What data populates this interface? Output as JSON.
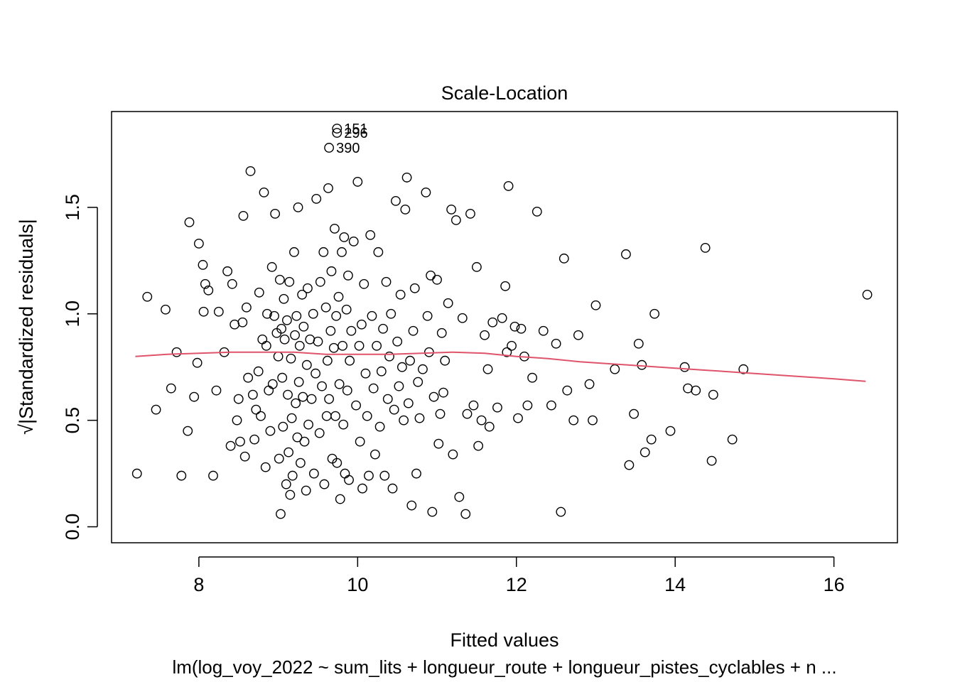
{
  "chart_data": {
    "type": "scatter",
    "title": "Scale-Location",
    "xlabel": "Fitted values",
    "ylabel": "√|Standardized residuals|",
    "subtitle": "lm(log_voy_2022 ~ sum_lits + longueur_route + longueur_pistes_cyclables + n ...",
    "xlim": [
      6.9,
      16.8
    ],
    "ylim": [
      -0.075,
      1.95
    ],
    "x_ticks": [
      8,
      10,
      12,
      14,
      16
    ],
    "y_ticks": [
      0.0,
      0.5,
      1.0,
      1.5
    ],
    "x_tick_labels": [
      "8",
      "10",
      "12",
      "14",
      "16"
    ],
    "y_tick_labels": [
      "0.0",
      "0.5",
      "1.0",
      "1.5"
    ],
    "grid": false,
    "smoother_color": "#DF536B",
    "point_color": "#000000",
    "labeled_points": [
      {
        "label": "151",
        "x": 9.74,
        "y": 1.87
      },
      {
        "label": "296",
        "x": 9.74,
        "y": 1.85
      },
      {
        "label": "390",
        "x": 9.64,
        "y": 1.78
      }
    ],
    "smoother": [
      [
        7.2,
        0.8
      ],
      [
        7.6,
        0.81
      ],
      [
        8.0,
        0.815
      ],
      [
        8.4,
        0.82
      ],
      [
        8.8,
        0.82
      ],
      [
        9.2,
        0.82
      ],
      [
        9.6,
        0.81
      ],
      [
        10.0,
        0.81
      ],
      [
        10.4,
        0.81
      ],
      [
        10.8,
        0.815
      ],
      [
        11.2,
        0.82
      ],
      [
        11.6,
        0.815
      ],
      [
        12.0,
        0.8
      ],
      [
        12.4,
        0.79
      ],
      [
        12.8,
        0.775
      ],
      [
        13.2,
        0.765
      ],
      [
        13.6,
        0.755
      ],
      [
        14.0,
        0.745
      ],
      [
        14.4,
        0.735
      ],
      [
        14.8,
        0.725
      ],
      [
        15.2,
        0.715
      ],
      [
        15.6,
        0.705
      ],
      [
        16.0,
        0.695
      ],
      [
        16.4,
        0.683
      ]
    ],
    "points": [
      [
        7.22,
        0.25
      ],
      [
        7.35,
        1.08
      ],
      [
        7.46,
        0.55
      ],
      [
        7.58,
        1.02
      ],
      [
        7.65,
        0.65
      ],
      [
        7.72,
        0.82
      ],
      [
        7.78,
        0.24
      ],
      [
        7.86,
        0.45
      ],
      [
        7.88,
        1.43
      ],
      [
        7.94,
        0.61
      ],
      [
        7.98,
        0.77
      ],
      [
        8.0,
        1.33
      ],
      [
        8.05,
        1.23
      ],
      [
        8.06,
        1.01
      ],
      [
        8.08,
        1.14
      ],
      [
        8.12,
        1.11
      ],
      [
        8.18,
        0.24
      ],
      [
        8.22,
        0.64
      ],
      [
        8.25,
        1.01
      ],
      [
        8.32,
        0.82
      ],
      [
        8.36,
        1.2
      ],
      [
        8.4,
        0.38
      ],
      [
        8.42,
        1.14
      ],
      [
        8.45,
        0.95
      ],
      [
        8.48,
        0.5
      ],
      [
        8.5,
        0.6
      ],
      [
        8.52,
        0.4
      ],
      [
        8.55,
        0.96
      ],
      [
        8.56,
        1.46
      ],
      [
        8.58,
        0.33
      ],
      [
        8.6,
        1.03
      ],
      [
        8.62,
        0.7
      ],
      [
        8.65,
        1.67
      ],
      [
        8.68,
        0.62
      ],
      [
        8.7,
        0.41
      ],
      [
        8.72,
        0.55
      ],
      [
        8.75,
        0.73
      ],
      [
        8.76,
        1.1
      ],
      [
        8.78,
        0.52
      ],
      [
        8.8,
        0.88
      ],
      [
        8.82,
        1.57
      ],
      [
        8.84,
        0.28
      ],
      [
        8.85,
        0.85
      ],
      [
        8.86,
        1.0
      ],
      [
        8.88,
        0.64
      ],
      [
        8.9,
        0.45
      ],
      [
        8.92,
        1.22
      ],
      [
        8.93,
        0.67
      ],
      [
        8.95,
        0.99
      ],
      [
        8.96,
        1.47
      ],
      [
        8.98,
        0.91
      ],
      [
        9.0,
        0.8
      ],
      [
        9.01,
        0.32
      ],
      [
        9.02,
        1.16
      ],
      [
        9.03,
        0.06
      ],
      [
        9.04,
        0.93
      ],
      [
        9.05,
        0.7
      ],
      [
        9.06,
        0.47
      ],
      [
        9.07,
        1.07
      ],
      [
        9.08,
        0.88
      ],
      [
        9.1,
        0.2
      ],
      [
        9.11,
        0.97
      ],
      [
        9.12,
        0.62
      ],
      [
        9.13,
        0.35
      ],
      [
        9.14,
        1.15
      ],
      [
        9.15,
        0.15
      ],
      [
        9.16,
        0.79
      ],
      [
        9.17,
        0.51
      ],
      [
        9.18,
        0.24
      ],
      [
        9.2,
        1.29
      ],
      [
        9.21,
        0.9
      ],
      [
        9.22,
        0.58
      ],
      [
        9.23,
        0.99
      ],
      [
        9.24,
        0.42
      ],
      [
        9.25,
        1.5
      ],
      [
        9.26,
        0.68
      ],
      [
        9.27,
        0.85
      ],
      [
        9.28,
        0.3
      ],
      [
        9.3,
        1.09
      ],
      [
        9.31,
        0.61
      ],
      [
        9.32,
        0.94
      ],
      [
        9.33,
        0.4
      ],
      [
        9.35,
        0.17
      ],
      [
        9.36,
        0.76
      ],
      [
        9.37,
        1.12
      ],
      [
        9.38,
        0.48
      ],
      [
        9.4,
        0.88
      ],
      [
        9.42,
        0.6
      ],
      [
        9.44,
        1.0
      ],
      [
        9.45,
        0.25
      ],
      [
        9.47,
        0.72
      ],
      [
        9.48,
        1.54
      ],
      [
        9.5,
        0.87
      ],
      [
        9.52,
        0.44
      ],
      [
        9.53,
        1.15
      ],
      [
        9.55,
        0.66
      ],
      [
        9.57,
        1.29
      ],
      [
        9.58,
        0.2
      ],
      [
        9.6,
        1.03
      ],
      [
        9.61,
        0.52
      ],
      [
        9.62,
        0.78
      ],
      [
        9.63,
        1.59
      ],
      [
        9.64,
        0.6
      ],
      [
        9.66,
        0.92
      ],
      [
        9.67,
        1.2
      ],
      [
        9.68,
        0.32
      ],
      [
        9.7,
        0.84
      ],
      [
        9.71,
        1.4
      ],
      [
        9.72,
        0.52
      ],
      [
        9.73,
        0.99
      ],
      [
        9.74,
        0.3
      ],
      [
        9.76,
        1.08
      ],
      [
        9.77,
        0.67
      ],
      [
        9.78,
        0.13
      ],
      [
        9.8,
        1.29
      ],
      [
        9.81,
        0.85
      ],
      [
        9.82,
        0.48
      ],
      [
        9.83,
        1.36
      ],
      [
        9.84,
        0.25
      ],
      [
        9.86,
        1.02
      ],
      [
        9.87,
        0.64
      ],
      [
        9.88,
        1.18
      ],
      [
        9.89,
        0.22
      ],
      [
        9.9,
        0.78
      ],
      [
        9.92,
        0.92
      ],
      [
        9.95,
        1.34
      ],
      [
        9.98,
        0.57
      ],
      [
        10.0,
        1.62
      ],
      [
        10.02,
        0.85
      ],
      [
        10.03,
        0.4
      ],
      [
        10.05,
        0.95
      ],
      [
        10.06,
        0.18
      ],
      [
        10.08,
        1.14
      ],
      [
        10.1,
        0.72
      ],
      [
        10.12,
        0.52
      ],
      [
        10.14,
        0.24
      ],
      [
        10.16,
        1.37
      ],
      [
        10.18,
        0.99
      ],
      [
        10.2,
        0.65
      ],
      [
        10.22,
        0.34
      ],
      [
        10.24,
        0.85
      ],
      [
        10.26,
        1.29
      ],
      [
        10.28,
        0.47
      ],
      [
        10.3,
        0.73
      ],
      [
        10.32,
        0.93
      ],
      [
        10.34,
        0.24
      ],
      [
        10.36,
        1.15
      ],
      [
        10.38,
        0.6
      ],
      [
        10.4,
        0.8
      ],
      [
        10.42,
        1.0
      ],
      [
        10.44,
        0.18
      ],
      [
        10.46,
        0.55
      ],
      [
        10.48,
        1.53
      ],
      [
        10.5,
        0.87
      ],
      [
        10.52,
        0.66
      ],
      [
        10.54,
        1.09
      ],
      [
        10.56,
        0.75
      ],
      [
        10.58,
        0.5
      ],
      [
        10.6,
        1.49
      ],
      [
        10.62,
        1.64
      ],
      [
        10.64,
        0.58
      ],
      [
        10.66,
        0.78
      ],
      [
        10.68,
        0.1
      ],
      [
        10.7,
        0.92
      ],
      [
        10.72,
        1.12
      ],
      [
        10.74,
        0.25
      ],
      [
        10.76,
        0.68
      ],
      [
        10.78,
        0.51
      ],
      [
        10.82,
        0.74
      ],
      [
        10.86,
        1.57
      ],
      [
        10.88,
        0.99
      ],
      [
        10.9,
        0.82
      ],
      [
        10.92,
        1.18
      ],
      [
        10.94,
        0.07
      ],
      [
        10.96,
        0.61
      ],
      [
        11.0,
        1.16
      ],
      [
        11.02,
        0.39
      ],
      [
        11.04,
        0.53
      ],
      [
        11.06,
        0.91
      ],
      [
        11.08,
        0.63
      ],
      [
        11.1,
        0.78
      ],
      [
        11.14,
        1.05
      ],
      [
        11.18,
        1.49
      ],
      [
        11.2,
        0.34
      ],
      [
        11.24,
        1.44
      ],
      [
        11.28,
        0.14
      ],
      [
        11.32,
        0.98
      ],
      [
        11.36,
        0.06
      ],
      [
        11.38,
        0.53
      ],
      [
        11.42,
        1.47
      ],
      [
        11.46,
        0.57
      ],
      [
        11.5,
        1.22
      ],
      [
        11.52,
        0.38
      ],
      [
        11.56,
        0.5
      ],
      [
        11.6,
        0.9
      ],
      [
        11.64,
        0.74
      ],
      [
        11.66,
        0.47
      ],
      [
        11.7,
        0.96
      ],
      [
        11.76,
        0.56
      ],
      [
        11.82,
        0.98
      ],
      [
        11.86,
        1.13
      ],
      [
        11.88,
        0.82
      ],
      [
        11.9,
        1.6
      ],
      [
        11.94,
        0.85
      ],
      [
        11.98,
        0.94
      ],
      [
        12.02,
        0.51
      ],
      [
        12.06,
        0.93
      ],
      [
        12.1,
        0.8
      ],
      [
        12.14,
        0.57
      ],
      [
        12.2,
        0.7
      ],
      [
        12.26,
        1.48
      ],
      [
        12.34,
        0.92
      ],
      [
        12.44,
        0.57
      ],
      [
        12.5,
        0.86
      ],
      [
        12.56,
        0.07
      ],
      [
        12.6,
        1.26
      ],
      [
        12.64,
        0.64
      ],
      [
        12.72,
        0.5
      ],
      [
        12.78,
        0.9
      ],
      [
        12.92,
        0.67
      ],
      [
        12.96,
        0.5
      ],
      [
        13.0,
        1.04
      ],
      [
        13.24,
        0.74
      ],
      [
        13.38,
        1.28
      ],
      [
        13.42,
        0.29
      ],
      [
        13.48,
        0.53
      ],
      [
        13.54,
        0.86
      ],
      [
        13.58,
        0.76
      ],
      [
        13.62,
        0.35
      ],
      [
        13.7,
        0.41
      ],
      [
        13.74,
        1.0
      ],
      [
        13.94,
        0.45
      ],
      [
        14.12,
        0.75
      ],
      [
        14.16,
        0.65
      ],
      [
        14.26,
        0.64
      ],
      [
        14.38,
        1.31
      ],
      [
        14.46,
        0.31
      ],
      [
        14.48,
        0.62
      ],
      [
        14.72,
        0.41
      ],
      [
        14.86,
        0.74
      ],
      [
        16.42,
        1.09
      ],
      [
        9.74,
        1.87
      ],
      [
        9.74,
        1.85
      ],
      [
        9.64,
        1.78
      ]
    ]
  }
}
